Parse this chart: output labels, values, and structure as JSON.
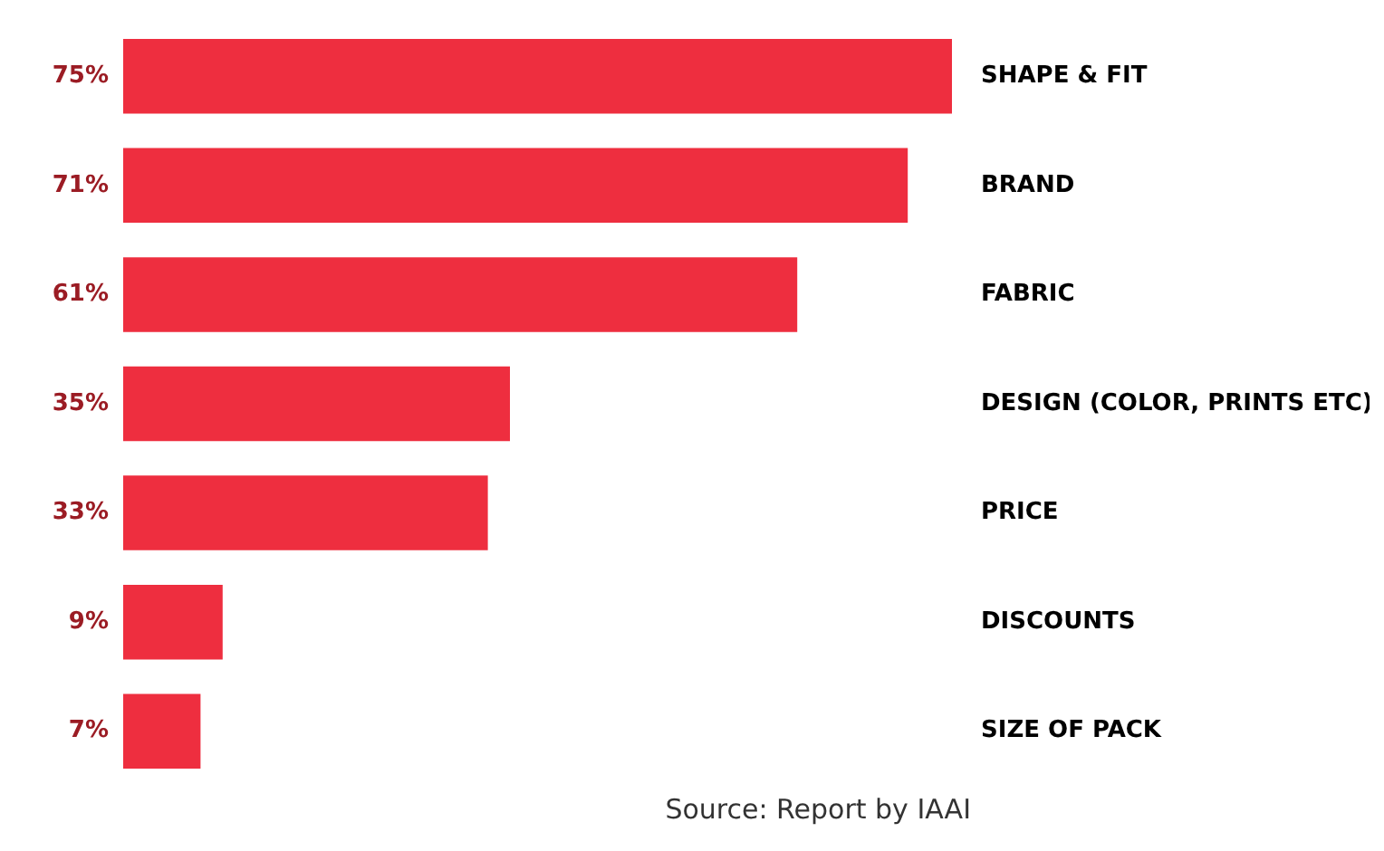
{
  "chart_data": {
    "type": "bar",
    "orientation": "horizontal",
    "categories": [
      "SHAPE & FIT",
      "BRAND",
      "FABRIC",
      "DESIGN (COLOR, PRINTS ETC)",
      "PRICE",
      "DISCOUNTS",
      "SIZE OF PACK"
    ],
    "values": [
      75,
      71,
      61,
      35,
      33,
      9,
      7
    ],
    "value_labels": [
      "75%",
      "71%",
      "61%",
      "35%",
      "33%",
      "9%",
      "7%"
    ],
    "color": "#ee2e3f",
    "annotations": [
      "Source: Report by IAAI"
    ]
  }
}
